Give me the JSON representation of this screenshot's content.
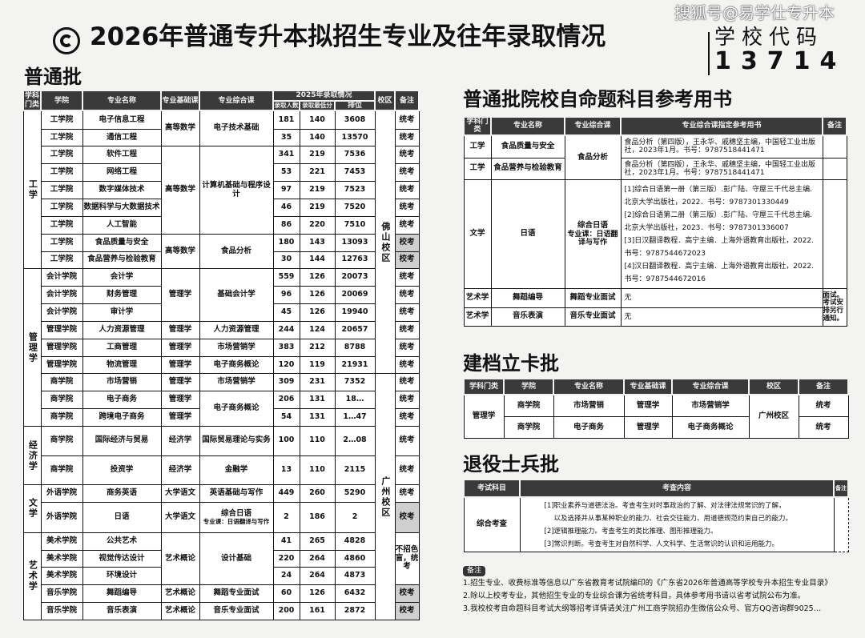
{
  "header": {
    "title": "2026年普通专升本拟招生专业及往年录取情况",
    "credit": "搜狐号@易学仕专升本",
    "code_label": "学校代码",
    "code_value": "13714"
  },
  "regular": {
    "section_title": "普通批",
    "headers": {
      "discipline": "学科门类",
      "college": "学院",
      "major": "专业名称",
      "basic": "专业基础课",
      "comprehensive": "专业综合课",
      "year_group": "2025年录取情况",
      "count": "录取人数",
      "min_score": "录取最低分",
      "rank": "排位",
      "campus": "校区",
      "remark": "备注"
    },
    "disciplines": [
      {
        "label": "工学",
        "span": 9
      },
      {
        "label": "管理学",
        "span": 9
      },
      {
        "label": "经济学",
        "span": 2
      },
      {
        "label": "文学",
        "span": 2
      },
      {
        "label": "艺术学",
        "span": 5
      }
    ],
    "basics": [
      {
        "label": "高等数学",
        "span": 2
      },
      {
        "label": "高等数学",
        "span": 5
      },
      {
        "label": "高等数学",
        "span": 2
      },
      {
        "label": "管理学",
        "span": 3
      },
      {
        "label": "管理学",
        "span": 1
      },
      {
        "label": "管理学",
        "span": 1
      },
      {
        "label": "管理学",
        "span": 1
      },
      {
        "label": "管理学",
        "span": 1
      },
      {
        "label": "管理学",
        "span": 1
      },
      {
        "label": "管理学",
        "span": 1
      },
      {
        "label": "经济学",
        "span": 1
      },
      {
        "label": "经济学",
        "span": 1
      },
      {
        "label": "大学语文",
        "span": 1
      },
      {
        "label": "大学语文",
        "span": 1
      },
      {
        "label": "艺术概论",
        "span": 3
      },
      {
        "label": "艺术概论",
        "span": 1
      },
      {
        "label": "艺术概论",
        "span": 1
      }
    ],
    "comprehensives": [
      {
        "label": "电子技术基础",
        "span": 2
      },
      {
        "label": "计算机基础与程序设计",
        "span": 5
      },
      {
        "label": "食品分析",
        "span": 2
      },
      {
        "label": "基础会计学",
        "span": 3
      },
      {
        "label": "人力资源管理",
        "span": 1
      },
      {
        "label": "市场营销学",
        "span": 1
      },
      {
        "label": "电子商务概论",
        "span": 1
      },
      {
        "label": "市场营销学",
        "span": 1
      },
      {
        "label": "电子商务概论",
        "span": 2
      },
      {
        "label": "国际贸易理论与实务",
        "span": 1
      },
      {
        "label": "金融学",
        "span": 1
      },
      {
        "label": "英语基础与写作",
        "span": 1
      },
      {
        "label": "综合日语",
        "sub": "专业课：日语翻译与写作",
        "span": 1
      },
      {
        "label": "设计基础",
        "span": 3
      },
      {
        "label": "舞蹈专业面试",
        "span": 1
      },
      {
        "label": "音乐专业面试",
        "span": 1
      }
    ],
    "campuses": [
      {
        "label": "佛山校区",
        "span": 15
      },
      {
        "label": "广州校区",
        "span": 12
      }
    ],
    "remarks": [
      {
        "label": "统考",
        "span": 1
      },
      {
        "label": "统考",
        "span": 1
      },
      {
        "label": "统考",
        "span": 1
      },
      {
        "label": "统考",
        "span": 1
      },
      {
        "label": "统考",
        "span": 1
      },
      {
        "label": "统考",
        "span": 1
      },
      {
        "label": "统考",
        "span": 1
      },
      {
        "label": "校考",
        "span": 1
      },
      {
        "label": "校考",
        "span": 1
      },
      {
        "label": "统考",
        "span": 1
      },
      {
        "label": "统考",
        "span": 1
      },
      {
        "label": "统考",
        "span": 1
      },
      {
        "label": "统考",
        "span": 1
      },
      {
        "label": "统考",
        "span": 1
      },
      {
        "label": "统考",
        "span": 1
      },
      {
        "label": "统考",
        "span": 1
      },
      {
        "label": "统考",
        "span": 1
      },
      {
        "label": "统考",
        "span": 1
      },
      {
        "label": "统考",
        "span": 1
      },
      {
        "label": "统考",
        "span": 1
      },
      {
        "label": "统考",
        "span": 1
      },
      {
        "label": "校考",
        "span": 1
      },
      {
        "label": "不招色盲，统考",
        "span": 3
      },
      {
        "label": "校考",
        "span": 1
      },
      {
        "label": "校考",
        "span": 1
      }
    ],
    "rows": [
      {
        "college": "工学院",
        "major": "电子信息工程",
        "count": "181",
        "min": "140",
        "rank": "3608"
      },
      {
        "college": "工学院",
        "major": "通信工程",
        "count": "35",
        "min": "140",
        "rank": "13570"
      },
      {
        "college": "工学院",
        "major": "软件工程",
        "count": "341",
        "min": "219",
        "rank": "7536"
      },
      {
        "college": "工学院",
        "major": "网络工程",
        "count": "53",
        "min": "221",
        "rank": "7453"
      },
      {
        "college": "工学院",
        "major": "数字媒体技术",
        "count": "97",
        "min": "219",
        "rank": "7523"
      },
      {
        "college": "工学院",
        "major": "数据科学与大数据技术",
        "count": "46",
        "min": "219",
        "rank": "7520"
      },
      {
        "college": "工学院",
        "major": "人工智能",
        "count": "86",
        "min": "220",
        "rank": "7510"
      },
      {
        "college": "工学院",
        "major": "食品质量与安全",
        "count": "180",
        "min": "143",
        "rank": "13093"
      },
      {
        "college": "工学院",
        "major": "食品营养与检验教育",
        "count": "30",
        "min": "144",
        "rank": "12763"
      },
      {
        "college": "会计学院",
        "major": "会计学",
        "count": "559",
        "min": "126",
        "rank": "20073"
      },
      {
        "college": "会计学院",
        "major": "财务管理",
        "count": "96",
        "min": "126",
        "rank": "20069"
      },
      {
        "college": "会计学院",
        "major": "审计学",
        "count": "45",
        "min": "126",
        "rank": "19940"
      },
      {
        "college": "管理学院",
        "major": "人力资源管理",
        "count": "244",
        "min": "124",
        "rank": "20657"
      },
      {
        "college": "管理学院",
        "major": "工商管理",
        "count": "383",
        "min": "212",
        "rank": "8788"
      },
      {
        "college": "管理学院",
        "major": "物流管理",
        "count": "120",
        "min": "119",
        "rank": "21931"
      },
      {
        "college": "商学院",
        "major": "市场营销",
        "count": "309",
        "min": "231",
        "rank": "7352"
      },
      {
        "college": "商学院",
        "major": "电子商务",
        "count": "206",
        "min": "131",
        "rank": "18…"
      },
      {
        "college": "商学院",
        "major": "跨境电子商务",
        "count": "54",
        "min": "131",
        "rank": "1…47"
      },
      {
        "college": "商学院",
        "major": "国际经济与贸易",
        "count": "100",
        "min": "110",
        "rank": "2…08"
      },
      {
        "college": "商学院",
        "major": "投资学",
        "count": "13",
        "min": "110",
        "rank": "2115"
      },
      {
        "college": "外语学院",
        "major": "商务英语",
        "count": "449",
        "min": "260",
        "rank": "5290"
      },
      {
        "college": "外语学院",
        "major": "日语",
        "count": "2",
        "min": "186",
        "rank": "2"
      },
      {
        "college": "美术学院",
        "major": "公共艺术",
        "count": "41",
        "min": "265",
        "rank": "4828"
      },
      {
        "college": "美术学院",
        "major": "视觉传达设计",
        "count": "220",
        "min": "264",
        "rank": "4860"
      },
      {
        "college": "美术学院",
        "major": "环境设计",
        "count": "24",
        "min": "264",
        "rank": "4873"
      },
      {
        "college": "音乐学院",
        "major": "舞蹈编导",
        "count": "60",
        "min": "126",
        "rank": "6432"
      },
      {
        "college": "音乐学院",
        "major": "音乐表演",
        "count": "200",
        "min": "161",
        "rank": "2872"
      }
    ]
  },
  "books": {
    "section_title": "普通批院校自命题科目参考用书",
    "headers": {
      "discipline": "学科门类",
      "major": "专业名称",
      "comprehensive": "专业综合课",
      "books": "专业综合课指定参考用书",
      "remark": "备注"
    },
    "rows": [
      {
        "discipline": "工学",
        "major": "食品质量与安全",
        "books": "食品分析（第四版），王永华、戚穗坚主编，中国轻工业出版社，2023年1月。书号：9787518441471"
      },
      {
        "discipline": "工学",
        "major": "食品营养与检验教育",
        "books": "食品分析（第四版），王永华、戚穗坚主编，中国轻工业出版社，2023年1月。书号：9787518441471"
      },
      {
        "discipline": "文学",
        "major": "日语",
        "course": "综合日语",
        "course_sub": "专业课：日语翻译与写作",
        "books": [
          "[1]综合日语第一册（第三版）.彭广陆、守屋三千代总主编.",
          "北京大学出版社，2022．书号：9787301330449",
          "[2]综合日语第二册（第三版）.彭广陆、守屋三千代总主编.",
          "北京大学出版社，2023．书号：9787301336007",
          "[3]日汉翻译教程．高宁主编．上海外语教育出版社，2022.",
          "书号：9787544672023",
          "[4]汉日翻译教程．高宁主编．上海外语教育出版社，2022.",
          "书号：9787544672016"
        ]
      },
      {
        "discipline": "艺术学",
        "major": "舞蹈编导",
        "course": "舞蹈专业面试",
        "books": "无"
      },
      {
        "discipline": "艺术学",
        "major": "音乐表演",
        "course": "音乐专业面试",
        "books": "无"
      }
    ],
    "food_course": "食品分析",
    "art_remark": "面试。考试安排另行通知。"
  },
  "archive": {
    "section_title": "建档立卡批",
    "headers": [
      "学科门类",
      "学院",
      "专业名称",
      "专业基础课",
      "专业综合课",
      "校区",
      "备注"
    ],
    "discipline": "管理学",
    "campus": "广州校区",
    "rows": [
      {
        "college": "商学院",
        "major": "市场营销",
        "basic": "管理学",
        "comprehensive": "市场营销学",
        "remark": "统考"
      },
      {
        "college": "商学院",
        "major": "电子商务",
        "basic": "管理学",
        "comprehensive": "电子商务概论",
        "remark": "统考"
      }
    ]
  },
  "veteran": {
    "section_title": "退役士兵批",
    "headers": {
      "subject": "考试科目",
      "content": "考查内容",
      "remark": "备注"
    },
    "subject": "综合考查",
    "content": [
      "[1]职业素养与道德法治。考查考生对时事政治的了解、对法律法规常识的了解，",
      "以及选择并从事某种职业的能力、社会交往能力、用道德规范约束自己的能力。",
      "[2]逻辑推理能力。考查考生的类比推理、图形推理能力。",
      "[3]常识判断。考查考生对自然科学、人文科学、生活常识的认识和运用能力。"
    ]
  },
  "notes": {
    "label": "备注",
    "items": [
      "1.招生专业、收费标准等信息以广东省教育考试院编印的《广东省2026年普通高等学校专升本招生专业目录》",
      "2.除以上校考专业，其他招生专业的专业综合课为省统考科目，具体参考用书请以省考试院公布为准。",
      "3.我校校考自命题科目考试大纲等招考详情请关注广州工商学院招办生微信公众号、官方QQ咨询群9025…"
    ]
  }
}
